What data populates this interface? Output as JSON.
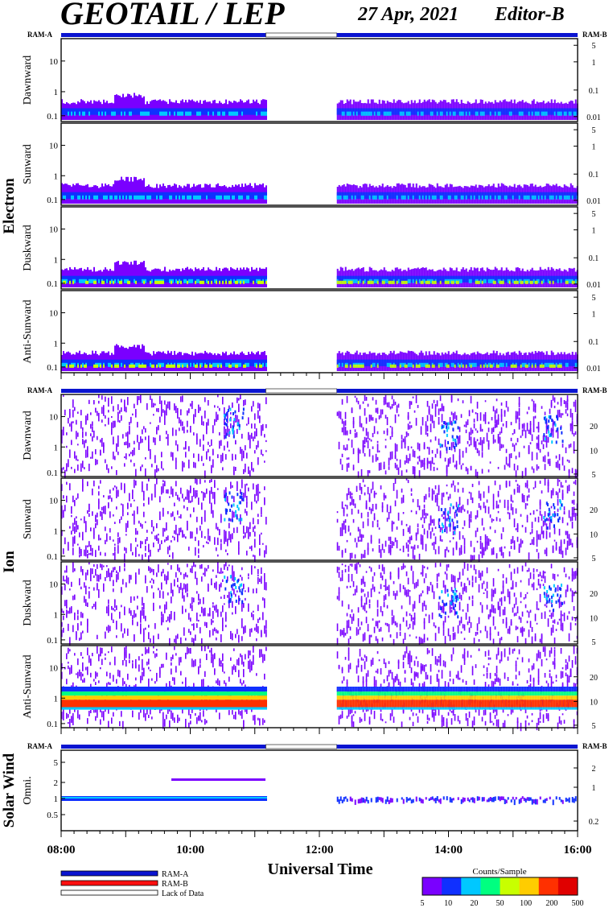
{
  "header": {
    "title": "GEOTAIL / LEP",
    "date": "27 Apr, 2021",
    "editor": "Editor-B"
  },
  "ram": {
    "a_label": "RAM-A",
    "b_label": "RAM-B"
  },
  "groups": [
    {
      "name": "Electron",
      "panels": [
        {
          "label": "Dawnward"
        },
        {
          "label": "Sunward"
        },
        {
          "label": "Duskward"
        },
        {
          "label": "Anti-Sunward"
        }
      ]
    },
    {
      "name": "Ion",
      "panels": [
        {
          "label": "Dawnward"
        },
        {
          "label": "Sunward"
        },
        {
          "label": "Duskward"
        },
        {
          "label": "Anti-Sunward"
        }
      ]
    },
    {
      "name": "Solar Wind",
      "panels": [
        {
          "label": "Omni."
        }
      ]
    }
  ],
  "chart_data": {
    "type": "heatmap",
    "xlabel": "Universal Time",
    "x_ticks": [
      "08:00",
      "10:00",
      "12:00",
      "14:00",
      "16:00"
    ],
    "x_range_hours": [
      8,
      16
    ],
    "data_gap_hours": [
      11.17,
      12.27
    ],
    "left_axis": {
      "electron_ticks": [
        "0.1",
        "1",
        "10"
      ],
      "ion_ticks": [
        "0.1",
        "1",
        "10"
      ],
      "solar_wind_ticks": [
        "0.5",
        "1",
        "2",
        "5"
      ]
    },
    "right_axis": {
      "electron_ticks": [
        "0.01",
        "0.1",
        "1",
        "5"
      ],
      "ion_ticks": [
        "5",
        "10",
        "20"
      ],
      "solar_wind_ticks": [
        "0.2",
        "1",
        "2"
      ]
    },
    "colorbar": {
      "title": "Counts/Sample",
      "ticks": [
        "5",
        "10",
        "20",
        "50",
        "100",
        "200",
        "500"
      ],
      "colors": [
        "#7a00ff",
        "#1030ff",
        "#00c8ff",
        "#00ff80",
        "#c8ff00",
        "#ffcc00",
        "#ff3000",
        "#e00000"
      ]
    },
    "legend": [
      {
        "label": "RAM-A",
        "color": "#0a14d0"
      },
      {
        "label": "RAM-B",
        "color": "#ff1010"
      },
      {
        "label": "Lack of Data",
        "color": "#ffffff"
      }
    ]
  }
}
